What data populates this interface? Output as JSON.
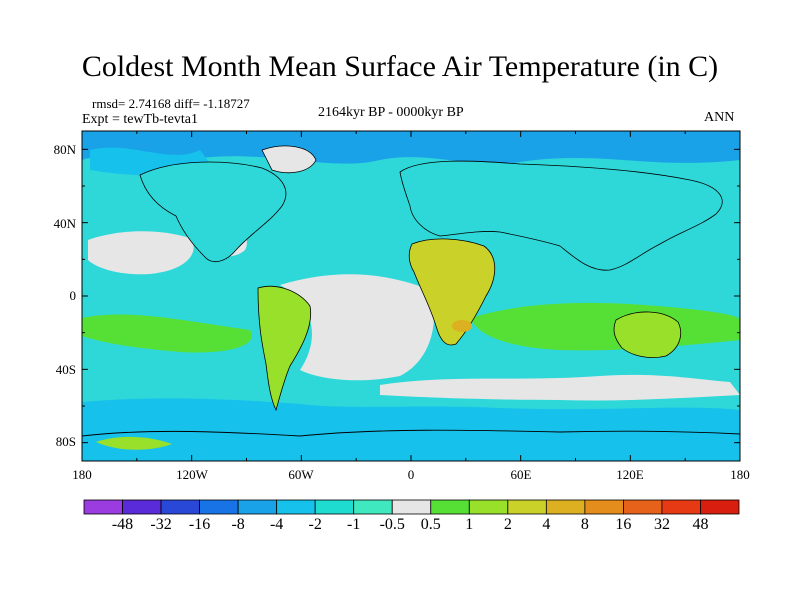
{
  "title": "Coldest Month Mean Surface Air Temperature (in C)",
  "stats": {
    "rmsd_label": "rmsd= 2.74168",
    "diff_label": "diff= -1.18727"
  },
  "expt_label": "Expt = tewTb-tevta1",
  "period_label": "2164kyr BP - 0000kyr BP",
  "season_label": "ANN",
  "map": {
    "projection": "cylindrical-equidistant",
    "lon_range": [
      -180,
      180
    ],
    "lat_range": [
      -90,
      90
    ],
    "lat_ticks": [
      "80N",
      "40N",
      "0",
      "40S",
      "80S"
    ],
    "lon_ticks": [
      "180",
      "120W",
      "60W",
      "0",
      "60E",
      "120E",
      "180"
    ],
    "field_description": "temperature difference field",
    "ocean_base_color": "#2fd8d8",
    "land_base_color": "#88e23a"
  },
  "colorbar": {
    "labels": [
      "-48",
      "-32",
      "-16",
      "-8",
      "-4",
      "-2",
      "-1",
      "-0.5",
      "0.5",
      "1",
      "2",
      "4",
      "8",
      "16",
      "32",
      "48"
    ],
    "colors": [
      "#9a3ce0",
      "#5a2bd8",
      "#2a48d8",
      "#1874e6",
      "#1aa2e8",
      "#16c2ec",
      "#1edcd0",
      "#40e8c0",
      "#e6e6e6",
      "#56e036",
      "#98e02a",
      "#cad22a",
      "#dcb020",
      "#e48c1c",
      "#e6621a",
      "#e63a14",
      "#d81e0e"
    ]
  }
}
